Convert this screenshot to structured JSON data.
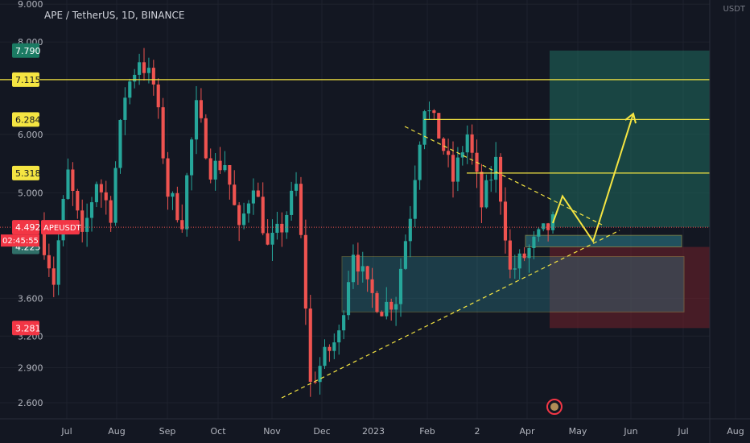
{
  "header": {
    "symbol_line": "APE / TetherUS, 1D, BINANCE",
    "currency": "USDT"
  },
  "colors": {
    "up": "#26a69a",
    "down": "#ef5350",
    "background": "#131722",
    "grid": "#1e222d",
    "axis_text": "#b2b5be",
    "level": "#f5e542",
    "target_zone": "#1f6b5e",
    "stop_zone": "#6b1f2a"
  },
  "chart_data": {
    "type": "candlestick",
    "y_scale": "log",
    "ylim": [
      2.45,
      9.6
    ],
    "y_ticks": [
      "9.000",
      "8.000",
      "6.000",
      "5.000",
      "3.600",
      "3.200",
      "2.900",
      "2.600"
    ],
    "x_ticks": [
      "Jul",
      "Aug",
      "Sep",
      "Oct",
      "Nov",
      "Dec",
      "2023",
      "Feb",
      "2",
      "Apr",
      "May",
      "Jun",
      "Jul",
      "Aug"
    ],
    "price_labels": [
      {
        "value": "7.790",
        "kind": "target"
      },
      {
        "value": "7.115",
        "kind": "level"
      },
      {
        "value": "6.284",
        "kind": "level"
      },
      {
        "value": "5.318",
        "kind": "level"
      },
      {
        "value": "4.492",
        "kind": "last"
      },
      {
        "value": "4.225",
        "kind": "entry"
      },
      {
        "value": "3.281",
        "kind": "stop"
      }
    ],
    "last_price_tag": {
      "symbol": "APEUSDT",
      "countdown": "02:45:55"
    },
    "path": [
      4.5,
      3.8,
      5.3,
      4.3,
      5.2,
      4.7,
      6.8,
      7.6,
      7.0,
      5.0,
      4.6,
      6.5,
      5.4,
      5.5,
      4.4,
      5.2,
      4.2,
      4.5,
      5.1,
      2.75,
      3.0,
      3.2,
      4.2,
      3.7,
      3.5,
      3.6,
      4.7,
      6.6,
      6.0,
      5.2,
      6.0,
      4.8,
      5.5,
      3.9,
      4.1,
      4.35,
      4.55
    ],
    "series": [
      {
        "name": "levels",
        "values": [
          7.115,
          6.284,
          5.318
        ]
      },
      {
        "name": "projection",
        "values": [
          4.55,
          4.95,
          4.3,
          6.4
        ]
      }
    ],
    "zones": [
      {
        "label": "target",
        "from": 4.492,
        "to": 7.79
      },
      {
        "label": "stop",
        "from": 3.281,
        "to": 4.225
      },
      {
        "label": "demand",
        "from": 3.45,
        "to": 4.1
      },
      {
        "label": "entry",
        "from": 4.225,
        "to": 4.38
      }
    ]
  }
}
